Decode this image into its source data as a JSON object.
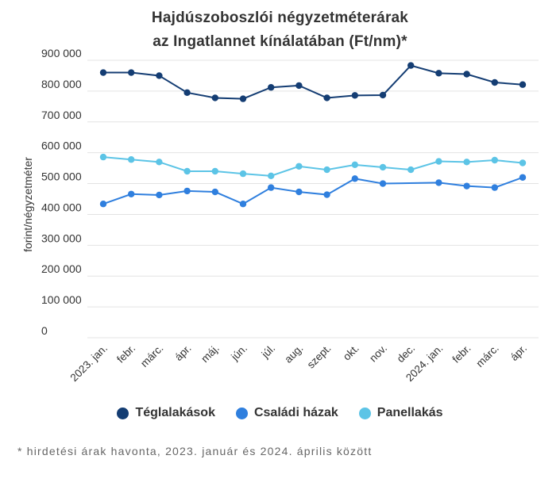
{
  "title_line1": "Hajdúszoboszlói négyzetméterárak",
  "title_line2": "az Ingatlannet kínálatában (Ft/nm)*",
  "footnote": "* hirdetési árak havonta, 2023. január és 2024. április között",
  "chart_data": {
    "type": "line",
    "ylabel": "forint/négyzetméter",
    "ylim": [
      0,
      900000
    ],
    "yticks": [
      0,
      100000,
      200000,
      300000,
      400000,
      500000,
      600000,
      700000,
      800000,
      900000
    ],
    "ytick_labels": [
      "0",
      "100 000",
      "200 000",
      "300 000",
      "400 000",
      "500 000",
      "600 000",
      "700 000",
      "800 000",
      "900 000"
    ],
    "categories": [
      "2023. jan.",
      "febr.",
      "márc.",
      "ápr.",
      "máj.",
      "jún.",
      "júl.",
      "aug.",
      "szept.",
      "okt.",
      "nov.",
      "dec.",
      "2024. jan.",
      "febr.",
      "márc.",
      "ápr."
    ],
    "series": [
      {
        "name": "Téglalakások",
        "color": "#143d73",
        "values": [
          860000,
          860000,
          850000,
          795000,
          778000,
          775000,
          812000,
          818000,
          778000,
          786000,
          787000,
          883000,
          858000,
          855000,
          828000,
          821000
        ]
      },
      {
        "name": "Családi házak",
        "color": "#2f7fde",
        "values": [
          434000,
          466000,
          463000,
          476000,
          473000,
          434000,
          487000,
          473000,
          464000,
          516000,
          500000,
          null,
          503000,
          492000,
          487000,
          520000
        ]
      },
      {
        "name": "Panellakás",
        "color": "#5cc4e6",
        "values": [
          586000,
          578000,
          570000,
          540000,
          540000,
          532000,
          525000,
          556000,
          545000,
          561000,
          553000,
          545000,
          572000,
          570000,
          576000,
          567000
        ]
      }
    ]
  }
}
